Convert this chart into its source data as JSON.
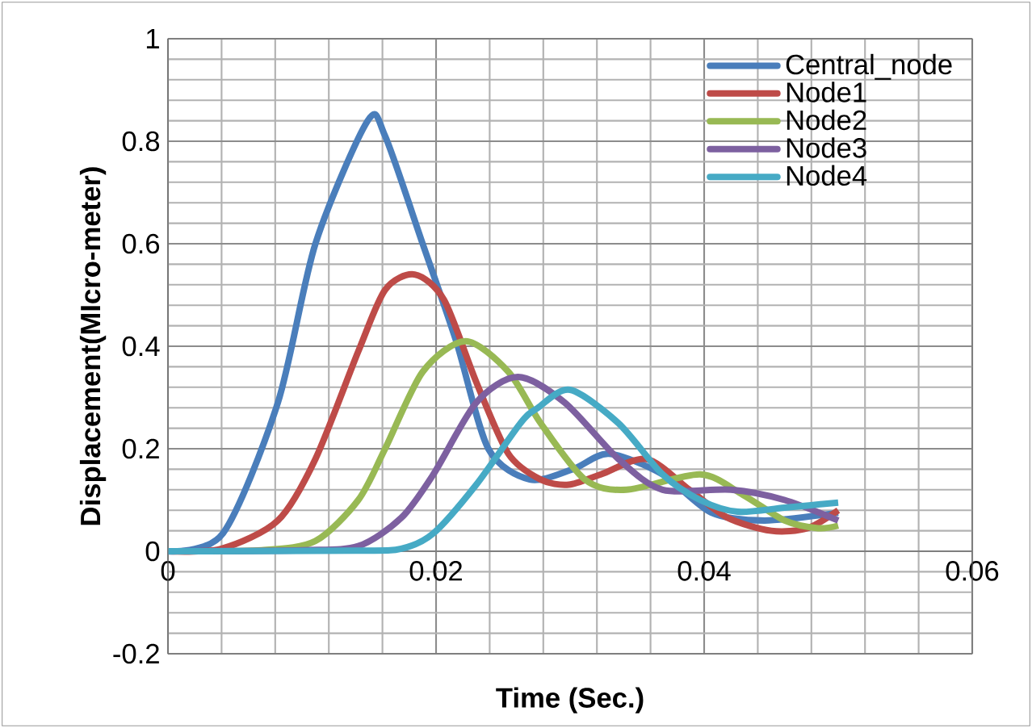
{
  "chart_data": {
    "type": "line",
    "xlabel": "Time (Sec.)",
    "ylabel": "Displacement(MIcro-meter)",
    "xlim": [
      0,
      0.06
    ],
    "ylim": [
      -0.2,
      1
    ],
    "xticks": [
      0,
      0.02,
      0.04,
      0.06
    ],
    "yticks": [
      -0.2,
      0,
      0.2,
      0.4,
      0.6,
      0.8,
      1
    ],
    "grid": true,
    "legend": "top right",
    "marker": "none",
    "line_style": "solid",
    "series": [
      {
        "name": "Central_node",
        "color": "#4a7ebb",
        "x": [
          0,
          0.0041,
          0.0082,
          0.011,
          0.0149,
          0.0162,
          0.019,
          0.0215,
          0.0239,
          0.027,
          0.0302,
          0.0329,
          0.0369,
          0.0405,
          0.0445,
          0.05
        ],
        "values": [
          0,
          0.035,
          0.29,
          0.6,
          0.84,
          0.81,
          0.6,
          0.41,
          0.2,
          0.14,
          0.16,
          0.19,
          0.15,
          0.076,
          0.06,
          0.075
        ]
      },
      {
        "name": "Node1",
        "color": "#be4b48",
        "x": [
          0,
          0.004,
          0.0082,
          0.011,
          0.0142,
          0.0162,
          0.0184,
          0.0206,
          0.023,
          0.0254,
          0.0278,
          0.0299,
          0.0323,
          0.0357,
          0.0389,
          0.0417,
          0.045,
          0.0477,
          0.05
        ],
        "values": [
          0,
          0.005,
          0.06,
          0.18,
          0.39,
          0.51,
          0.54,
          0.49,
          0.33,
          0.19,
          0.14,
          0.13,
          0.15,
          0.18,
          0.12,
          0.066,
          0.04,
          0.045,
          0.08
        ]
      },
      {
        "name": "Node2",
        "color": "#98b954",
        "x": [
          0,
          0.007,
          0.011,
          0.0142,
          0.0162,
          0.019,
          0.0222,
          0.0254,
          0.0278,
          0.0311,
          0.0342,
          0.0397,
          0.0429,
          0.046,
          0.0485,
          0.05
        ],
        "values": [
          0,
          0.002,
          0.02,
          0.1,
          0.2,
          0.35,
          0.41,
          0.35,
          0.25,
          0.14,
          0.12,
          0.15,
          0.11,
          0.06,
          0.045,
          0.05
        ]
      },
      {
        "name": "Node3",
        "color": "#7d60a0",
        "x": [
          0,
          0.01,
          0.0142,
          0.0174,
          0.0198,
          0.023,
          0.0261,
          0.0296,
          0.0336,
          0.0369,
          0.042,
          0.046,
          0.05
        ],
        "values": [
          0,
          0.002,
          0.01,
          0.065,
          0.15,
          0.29,
          0.34,
          0.29,
          0.18,
          0.12,
          0.12,
          0.1,
          0.06
        ]
      },
      {
        "name": "Node4",
        "color": "#46aac5",
        "x": [
          0,
          0.014,
          0.0174,
          0.0198,
          0.023,
          0.0263,
          0.0276,
          0.03,
          0.0336,
          0.0369,
          0.0397,
          0.0425,
          0.046,
          0.05
        ],
        "values": [
          0,
          0.001,
          0.005,
          0.035,
          0.13,
          0.25,
          0.28,
          0.315,
          0.25,
          0.15,
          0.1,
          0.077,
          0.085,
          0.095
        ]
      }
    ]
  }
}
